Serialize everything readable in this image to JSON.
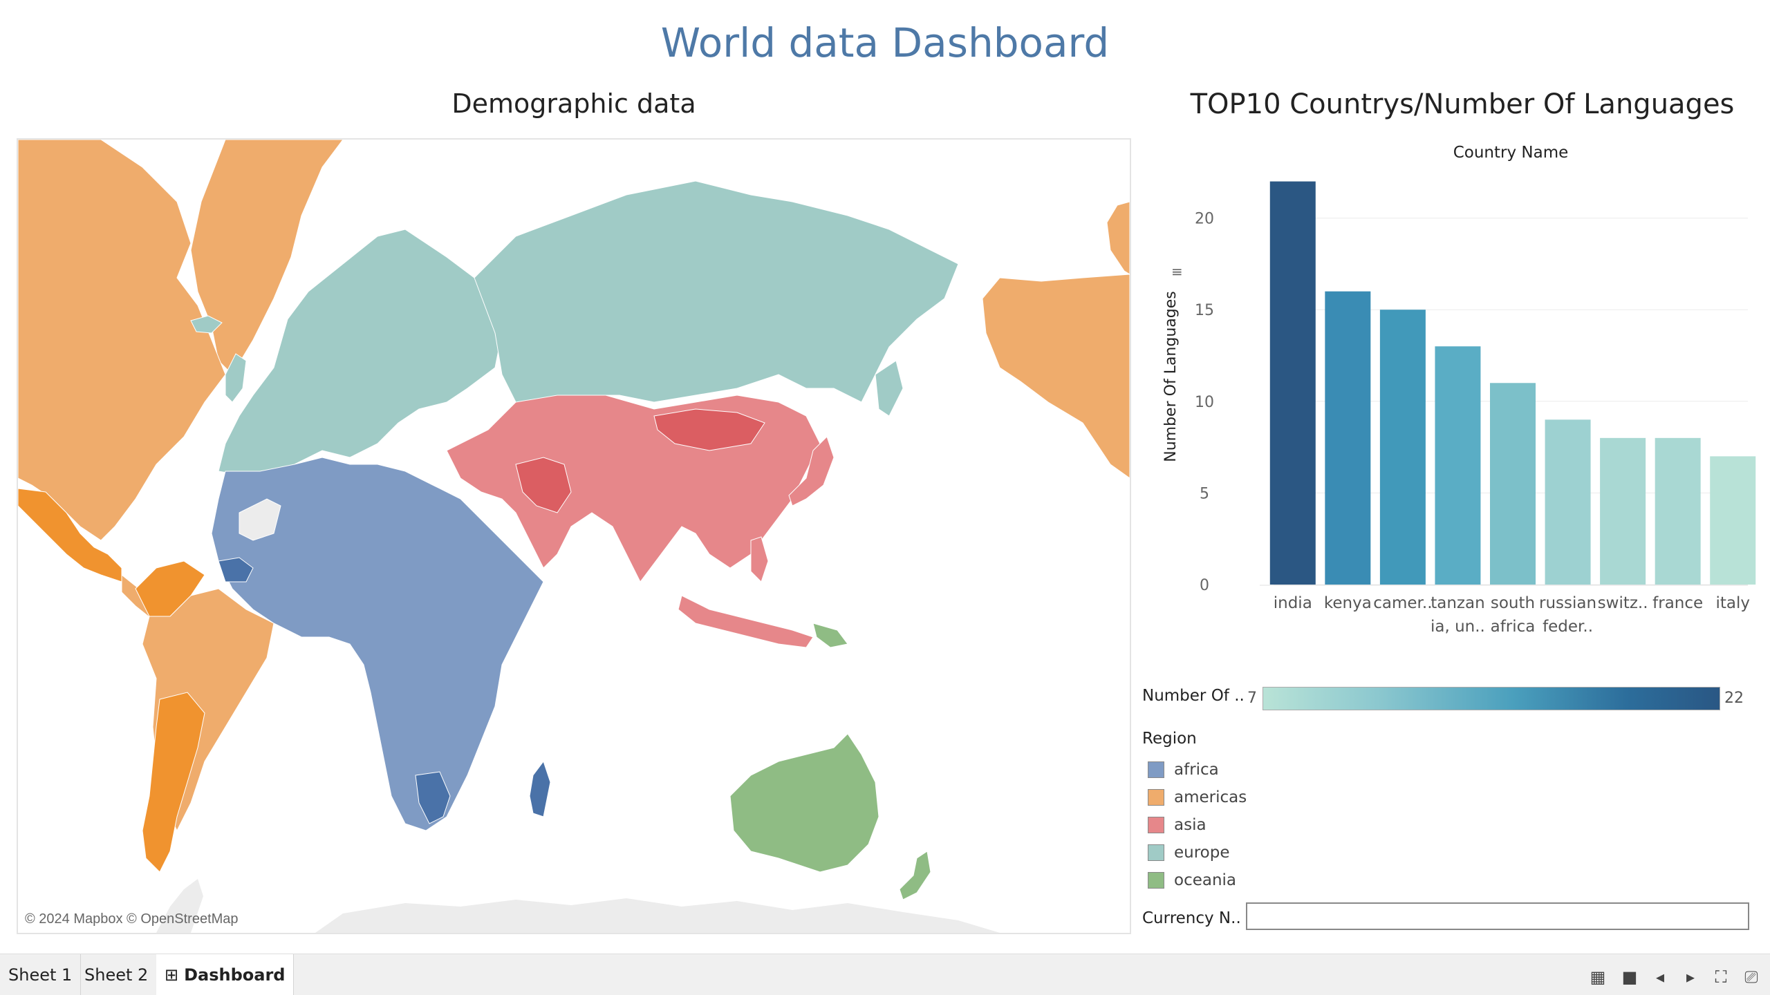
{
  "dashboard": {
    "title": "World data Dashboard"
  },
  "map": {
    "title": "Demographic data",
    "credit": "© 2024 Mapbox © OpenStreetMap",
    "region_colors": {
      "africa": "#7f9bc4",
      "americas": "#efac6c",
      "asia": "#e6878a",
      "europe": "#a0cbc6",
      "oceania": "#8fbc84",
      "highlight_africa": "#4a72a8",
      "highlight_americas": "#f0932f",
      "highlight_asia": "#db5e62",
      "nodata": "#e8e8e8"
    }
  },
  "chart": {
    "title": "TOP10 Countrys/Number Of Languages",
    "sort_icon": "sort-icon"
  },
  "chart_data": {
    "type": "bar",
    "title": "TOP10 Countrys/Number Of Languages",
    "xlabel": "Country Name",
    "ylabel": "Number Of Languages",
    "ylim": [
      0,
      22
    ],
    "yticks": [
      "0",
      "5",
      "10",
      "15",
      "20"
    ],
    "categories": [
      "india",
      "kenya",
      "camer..",
      "tanzan ia, un..",
      "south africa",
      "russian feder..",
      "switz..",
      "france",
      "italy"
    ],
    "category_lines": [
      [
        "india"
      ],
      [
        "kenya"
      ],
      [
        "camer.."
      ],
      [
        "tanzan",
        "ia, un.."
      ],
      [
        "south",
        "africa"
      ],
      [
        "russian",
        "feder.."
      ],
      [
        "switz.."
      ],
      [
        "france"
      ],
      [
        "italy"
      ]
    ],
    "values": [
      22,
      16,
      15,
      13,
      11,
      9,
      8,
      8,
      7
    ],
    "colors": [
      "#2b5783",
      "#3a8cb4",
      "#4199ba",
      "#5aadc5",
      "#7cc0c9",
      "#9dd1d1",
      "#a9d8d3",
      "#a9d8d3",
      "#b8e2d7"
    ],
    "grid": true,
    "legend": "bottom"
  },
  "color_legend": {
    "label": "Number Of ..",
    "min": "7",
    "max": "22"
  },
  "region_legend": {
    "title": "Region",
    "items": [
      {
        "label": "africa",
        "color": "#7f9bc4"
      },
      {
        "label": "americas",
        "color": "#efac6c"
      },
      {
        "label": "asia",
        "color": "#e6878a"
      },
      {
        "label": "europe",
        "color": "#a0cbc6"
      },
      {
        "label": "oceania",
        "color": "#8fbc84"
      }
    ]
  },
  "filter": {
    "label": "Currency N..",
    "value": ""
  },
  "tabs": [
    {
      "label": "Sheet 1"
    },
    {
      "label": "Sheet 2"
    },
    {
      "label": "Dashboard",
      "icon": "grid-icon"
    }
  ],
  "toolbar": {
    "icons": [
      "presentation-layout-icon",
      "stop-icon",
      "prev-icon",
      "next-icon",
      "fullscreen-icon",
      "present-icon"
    ]
  }
}
